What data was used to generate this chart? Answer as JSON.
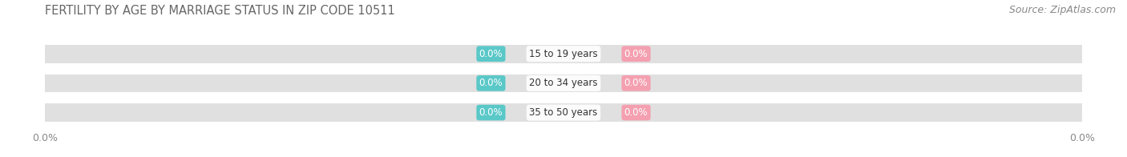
{
  "title": "FERTILITY BY AGE BY MARRIAGE STATUS IN ZIP CODE 10511",
  "source": "Source: ZipAtlas.com",
  "categories": [
    "15 to 19 years",
    "20 to 34 years",
    "35 to 50 years"
  ],
  "married_values": [
    0.0,
    0.0,
    0.0
  ],
  "unmarried_values": [
    0.0,
    0.0,
    0.0
  ],
  "married_color": "#5bc8c8",
  "unmarried_color": "#f4a0b0",
  "bar_bg_color": "#e0e0e0",
  "bar_height": 0.62,
  "title_fontsize": 10.5,
  "source_fontsize": 9,
  "tick_fontsize": 9,
  "label_fontsize": 8.5,
  "cat_fontsize": 8.5,
  "background_color": "#ffffff",
  "x_left_label": "0.0%",
  "x_right_label": "0.0%"
}
